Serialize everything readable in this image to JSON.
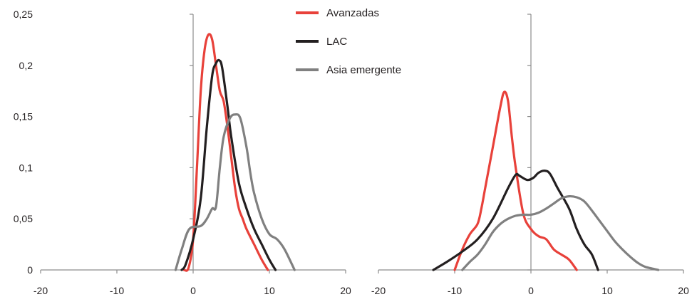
{
  "chart_data": [
    {
      "type": "line",
      "title": "",
      "xlabel": "",
      "ylabel": "",
      "xlim": [
        -20,
        20
      ],
      "ylim": [
        0,
        0.25
      ],
      "x_ticks": [
        "-20",
        "-10",
        "0",
        "10",
        "20"
      ],
      "y_ticks": [
        "0",
        "0,05",
        "0,1",
        "0,15",
        "0,2",
        "0,25"
      ],
      "grid": false,
      "legend": {
        "position": "top-right",
        "entries": [
          "Avanzadas",
          "LAC",
          "Asia emergente"
        ]
      },
      "series": [
        {
          "name": "Avanzadas",
          "color": "#e8413a",
          "x": [
            -1.2,
            -0.6,
            0,
            0.5,
            1.0,
            1.5,
            2.0,
            2.5,
            3.0,
            3.5,
            4.0,
            4.5,
            5.0,
            5.5,
            6.0,
            6.5,
            7.0,
            8.0,
            9.0,
            9.8
          ],
          "y": [
            0,
            0.002,
            0.03,
            0.1,
            0.175,
            0.215,
            0.23,
            0.225,
            0.2,
            0.175,
            0.165,
            0.14,
            0.11,
            0.08,
            0.06,
            0.05,
            0.04,
            0.025,
            0.01,
            0
          ]
        },
        {
          "name": "LAC",
          "color": "#231f20",
          "x": [
            -1.5,
            -1.0,
            0,
            1.0,
            1.8,
            2.5,
            3.0,
            3.4,
            3.8,
            4.5,
            5.0,
            6.0,
            7.0,
            8.0,
            9.0,
            10.0,
            10.8
          ],
          "y": [
            0,
            0.005,
            0.03,
            0.07,
            0.14,
            0.19,
            0.202,
            0.205,
            0.198,
            0.16,
            0.13,
            0.085,
            0.06,
            0.04,
            0.025,
            0.01,
            0
          ]
        },
        {
          "name": "Asia emergente",
          "color": "#808080",
          "x": [
            -2.3,
            -1.5,
            -0.5,
            1.0,
            1.8,
            2.5,
            3.0,
            3.5,
            4.0,
            4.8,
            5.5,
            6.2,
            7.0,
            7.5,
            8.0,
            9.0,
            10.0,
            11.0,
            12.0,
            13.3
          ],
          "y": [
            0,
            0.02,
            0.04,
            0.043,
            0.05,
            0.06,
            0.062,
            0.1,
            0.13,
            0.148,
            0.152,
            0.148,
            0.12,
            0.095,
            0.075,
            0.05,
            0.035,
            0.03,
            0.02,
            0
          ]
        }
      ]
    },
    {
      "type": "line",
      "title": "",
      "xlabel": "",
      "ylabel": "",
      "xlim": [
        -20,
        20
      ],
      "ylim": [
        0,
        0.25
      ],
      "x_ticks": [
        "-20",
        "-10",
        "0",
        "10",
        "20"
      ],
      "grid": false,
      "series": [
        {
          "name": "Avanzadas",
          "color": "#e8413a",
          "x": [
            -10.0,
            -9.0,
            -8.0,
            -7.0,
            -6.5,
            -6.0,
            -5.0,
            -4.0,
            -3.5,
            -3.0,
            -2.5,
            -2.0,
            -1.0,
            0,
            1.0,
            2.0,
            3.0,
            4.0,
            5.0,
            6.0
          ],
          "y": [
            0,
            0.02,
            0.035,
            0.045,
            0.06,
            0.08,
            0.12,
            0.16,
            0.174,
            0.165,
            0.13,
            0.1,
            0.055,
            0.04,
            0.033,
            0.03,
            0.02,
            0.015,
            0.01,
            0
          ]
        },
        {
          "name": "LAC",
          "color": "#231f20",
          "x": [
            -12.8,
            -11.0,
            -9.0,
            -7.0,
            -5.0,
            -3.0,
            -2.0,
            -1.5,
            -0.5,
            0.3,
            1.0,
            1.8,
            2.5,
            3.5,
            5.0,
            6.0,
            7.0,
            8.0,
            8.8
          ],
          "y": [
            0,
            0.008,
            0.018,
            0.03,
            0.05,
            0.08,
            0.093,
            0.092,
            0.088,
            0.09,
            0.095,
            0.097,
            0.094,
            0.08,
            0.06,
            0.04,
            0.025,
            0.015,
            0
          ]
        },
        {
          "name": "Asia emergente",
          "color": "#808080",
          "x": [
            -9.0,
            -8.0,
            -7.0,
            -6.0,
            -5.0,
            -4.0,
            -3.0,
            -2.0,
            -1.0,
            0,
            1.0,
            2.0,
            3.0,
            4.0,
            5.0,
            6.0,
            7.0,
            8.0,
            9.0,
            10.0,
            11.0,
            12.0,
            13.0,
            14.0,
            15.0,
            16.7
          ],
          "y": [
            0,
            0.008,
            0.015,
            0.025,
            0.037,
            0.045,
            0.05,
            0.053,
            0.054,
            0.054,
            0.056,
            0.06,
            0.065,
            0.07,
            0.072,
            0.071,
            0.067,
            0.058,
            0.048,
            0.038,
            0.028,
            0.02,
            0.013,
            0.007,
            0.003,
            0
          ]
        }
      ]
    }
  ]
}
